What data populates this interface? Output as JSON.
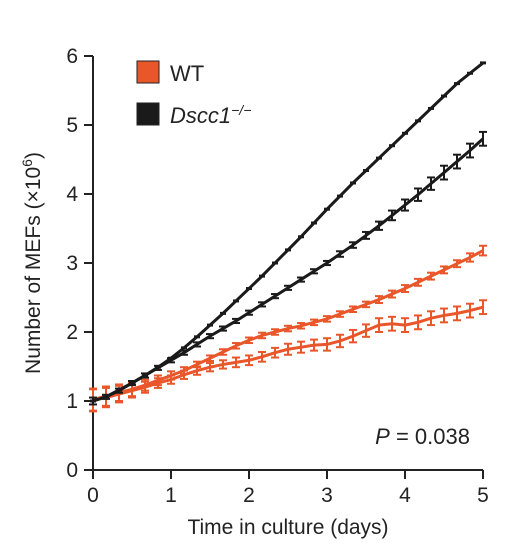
{
  "chart_data": {
    "type": "line",
    "xlabel": "Time in culture (days)",
    "ylabel_prefix": "Number of MEFs (×10",
    "ylabel_exp": "6",
    "ylabel_suffix": ")",
    "xlim": [
      0,
      5
    ],
    "ylim": [
      0,
      6
    ],
    "xticks": [
      "0",
      "1",
      "2",
      "3",
      "4",
      "5"
    ],
    "yticks": [
      "0",
      "1",
      "2",
      "3",
      "4",
      "5",
      "6"
    ],
    "legend": {
      "placement": "top-left",
      "items": [
        {
          "label": "WT",
          "color": "#e8562a"
        },
        {
          "label_main": "Dscc1",
          "label_sup": "−/−",
          "color": "#1a1a1a"
        }
      ]
    },
    "annotation": {
      "p_label": "P",
      "p_value": " = 0.038"
    },
    "x": [
      0,
      0.1667,
      0.3333,
      0.5,
      0.6667,
      0.8333,
      1.0,
      1.1667,
      1.3333,
      1.5,
      1.6667,
      1.8333,
      2.0,
      2.1667,
      2.3333,
      2.5,
      2.6667,
      2.8333,
      3.0,
      3.1667,
      3.3333,
      3.5,
      3.6667,
      3.8333,
      4.0,
      4.1667,
      4.3333,
      4.5,
      4.6667,
      4.8333,
      5.0
    ],
    "series": [
      {
        "group": "WT",
        "color": "#e8562a",
        "values": [
          1.02,
          1.07,
          1.12,
          1.17,
          1.23,
          1.3,
          1.37,
          1.44,
          1.53,
          1.62,
          1.71,
          1.8,
          1.88,
          1.95,
          2.0,
          2.05,
          2.09,
          2.14,
          2.19,
          2.26,
          2.33,
          2.4,
          2.47,
          2.55,
          2.63,
          2.72,
          2.81,
          2.9,
          2.99,
          3.08,
          3.18
        ],
        "err": [
          0.16,
          0.14,
          0.12,
          0.1,
          0.08,
          0.07,
          0.06,
          0.05,
          0.04,
          0.04,
          0.04,
          0.04,
          0.04,
          0.04,
          0.04,
          0.04,
          0.04,
          0.04,
          0.04,
          0.04,
          0.04,
          0.04,
          0.05,
          0.05,
          0.05,
          0.05,
          0.05,
          0.05,
          0.05,
          0.06,
          0.07
        ]
      },
      {
        "group": "WT",
        "color": "#e8562a",
        "values": [
          1.01,
          1.05,
          1.1,
          1.15,
          1.2,
          1.26,
          1.31,
          1.38,
          1.44,
          1.49,
          1.53,
          1.56,
          1.59,
          1.64,
          1.7,
          1.75,
          1.78,
          1.81,
          1.82,
          1.87,
          1.94,
          2.02,
          2.1,
          2.12,
          2.1,
          2.14,
          2.2,
          2.24,
          2.27,
          2.31,
          2.36
        ],
        "err": [
          0.16,
          0.14,
          0.12,
          0.1,
          0.08,
          0.07,
          0.06,
          0.06,
          0.06,
          0.06,
          0.06,
          0.07,
          0.07,
          0.07,
          0.07,
          0.08,
          0.08,
          0.08,
          0.09,
          0.09,
          0.09,
          0.09,
          0.1,
          0.1,
          0.1,
          0.1,
          0.1,
          0.1,
          0.1,
          0.1,
          0.1
        ]
      },
      {
        "group": "Dscc1",
        "color": "#1a1a1a",
        "values": [
          1.0,
          1.06,
          1.16,
          1.26,
          1.37,
          1.49,
          1.62,
          1.77,
          1.93,
          2.1,
          2.27,
          2.45,
          2.63,
          2.81,
          3.0,
          3.19,
          3.38,
          3.58,
          3.78,
          3.97,
          4.16,
          4.34,
          4.52,
          4.7,
          4.88,
          5.06,
          5.24,
          5.42,
          5.6,
          5.75,
          5.9
        ]
      },
      {
        "group": "Dscc1",
        "color": "#1a1a1a",
        "values": [
          1.0,
          1.06,
          1.15,
          1.26,
          1.37,
          1.48,
          1.59,
          1.7,
          1.82,
          1.94,
          2.05,
          2.16,
          2.28,
          2.4,
          2.52,
          2.64,
          2.76,
          2.88,
          3.0,
          3.13,
          3.26,
          3.4,
          3.54,
          3.69,
          3.84,
          3.99,
          4.15,
          4.31,
          4.47,
          4.63,
          4.8
        ],
        "err": [
          0.05,
          0.03,
          0.03,
          0.03,
          0.03,
          0.03,
          0.03,
          0.03,
          0.03,
          0.03,
          0.03,
          0.03,
          0.03,
          0.03,
          0.03,
          0.03,
          0.03,
          0.03,
          0.03,
          0.04,
          0.04,
          0.05,
          0.06,
          0.07,
          0.08,
          0.09,
          0.09,
          0.1,
          0.1,
          0.1,
          0.1
        ]
      }
    ]
  }
}
